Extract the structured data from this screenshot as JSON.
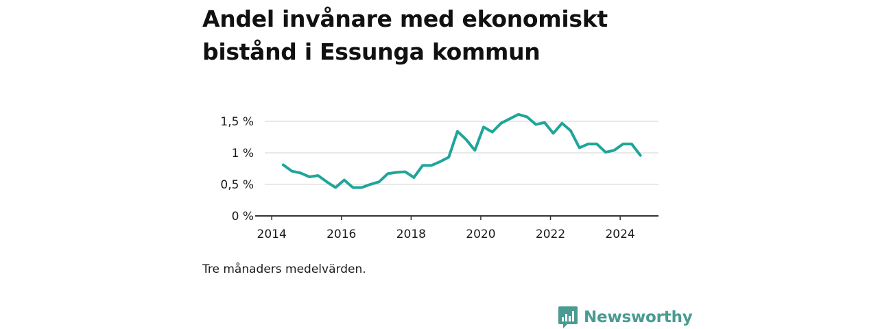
{
  "title": "Andel invånare med ekonomiskt bistånd i Essunga kommun",
  "note": "Tre månaders medelvärden.",
  "brand": {
    "name": "Newsworthy",
    "icon": "newsworthy-logo-icon"
  },
  "colors": {
    "line": "#1fa59a",
    "grid": "#d9d9d9",
    "axis": "#333333",
    "brand": "#4a9b92"
  },
  "chart_data": {
    "type": "line",
    "title": "Andel invånare med ekonomiskt bistånd i Essunga kommun",
    "xlabel": "",
    "ylabel": "",
    "xlim": [
      2013.8,
      2025.1
    ],
    "ylim": [
      0,
      1.5
    ],
    "grid": true,
    "x_ticks": [
      2014,
      2016,
      2018,
      2020,
      2022,
      2024
    ],
    "y_ticks": [
      0,
      0.5,
      1,
      1.5
    ],
    "y_tick_labels": [
      "0 %",
      "0,5 %",
      "1 %",
      "1,5 %"
    ],
    "series": [
      {
        "x": [
          2014.33,
          2014.58,
          2014.83,
          2015.08,
          2015.33,
          2015.58,
          2015.83,
          2016.08,
          2016.33,
          2016.58,
          2016.83,
          2017.08,
          2017.33,
          2017.58,
          2017.83,
          2018.08,
          2018.33,
          2018.58,
          2018.83,
          2019.08,
          2019.33,
          2019.58,
          2019.83,
          2020.08,
          2020.33,
          2020.58,
          2020.83,
          2021.08,
          2021.33,
          2021.58,
          2021.83,
          2022.08,
          2022.33,
          2022.58,
          2022.83,
          2023.08,
          2023.33,
          2023.58,
          2023.83,
          2024.08,
          2024.33,
          2024.58
        ],
        "values": [
          0.81,
          0.71,
          0.68,
          0.62,
          0.64,
          0.54,
          0.45,
          0.57,
          0.45,
          0.45,
          0.5,
          0.54,
          0.67,
          0.69,
          0.7,
          0.61,
          0.8,
          0.8,
          0.86,
          0.93,
          1.34,
          1.21,
          1.04,
          1.41,
          1.33,
          1.47,
          1.54,
          1.61,
          1.57,
          1.45,
          1.48,
          1.31,
          1.47,
          1.35,
          1.08,
          1.14,
          1.14,
          1.01,
          1.04,
          1.14,
          1.14,
          0.96
        ]
      }
    ]
  }
}
